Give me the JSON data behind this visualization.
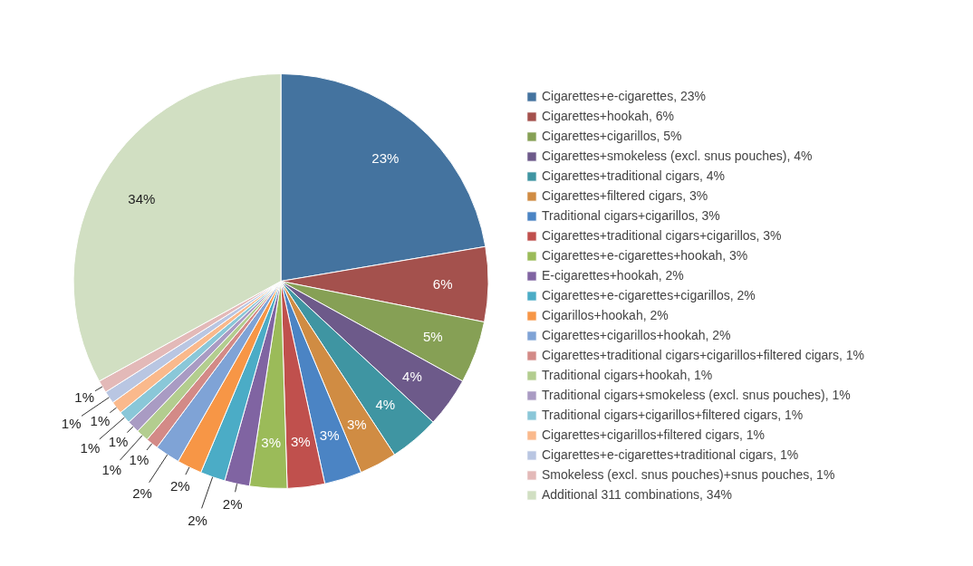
{
  "chart_data": {
    "type": "pie",
    "categories": [
      "Cigarettes+e-cigarettes",
      "Cigarettes+hookah",
      "Cigarettes+cigarillos",
      "Cigarettes+smokeless (excl. snus pouches)",
      "Cigarettes+traditional cigars",
      "Cigarettes+filtered cigars",
      "Traditional cigars+cigarillos",
      "Cigarettes+traditional cigars+cigarillos",
      "Cigarettes+e-cigarettes+hookah",
      "E-cigarettes+hookah",
      "Cigarettes+e-cigarettes+cigarillos",
      "Cigarillos+hookah",
      "Cigarettes+cigarillos+hookah",
      "Cigarettes+traditional cigars+cigarillos+filtered cigars",
      "Traditional cigars+hookah",
      "Traditional cigars+smokeless (excl. snus pouches)",
      "Traditional cigars+cigarillos+filtered cigars",
      "Cigarettes+cigarillos+filtered cigars",
      "Cigarettes+e-cigarettes+traditional cigars",
      "Smokeless (excl. snus pouches)+snus pouches",
      "Additional 311 combinations"
    ],
    "values": [
      23,
      6,
      5,
      4,
      4,
      3,
      3,
      3,
      3,
      2,
      2,
      2,
      2,
      1,
      1,
      1,
      1,
      1,
      1,
      1,
      34
    ],
    "value_labels": [
      "23%",
      "6%",
      "5%",
      "4%",
      "4%",
      "3%",
      "3%",
      "3%",
      "3%",
      "2%",
      "2%",
      "2%",
      "2%",
      "1%",
      "1%",
      "1%",
      "1%",
      "1%",
      "1%",
      "1%",
      "34%"
    ],
    "colors": [
      "#44739f",
      "#a4514d",
      "#86a055",
      "#6d5a8a",
      "#3f95a2",
      "#d08c43",
      "#4b84c4",
      "#c0504d",
      "#9bbb59",
      "#8064a2",
      "#4bacc6",
      "#f79646",
      "#7fa3d6",
      "#d38a87",
      "#b3cd8f",
      "#a99bc3",
      "#8ac7d8",
      "#fab98c",
      "#b9c6e2",
      "#e3b9b8",
      "#d1dfc2"
    ],
    "legend": "right"
  }
}
